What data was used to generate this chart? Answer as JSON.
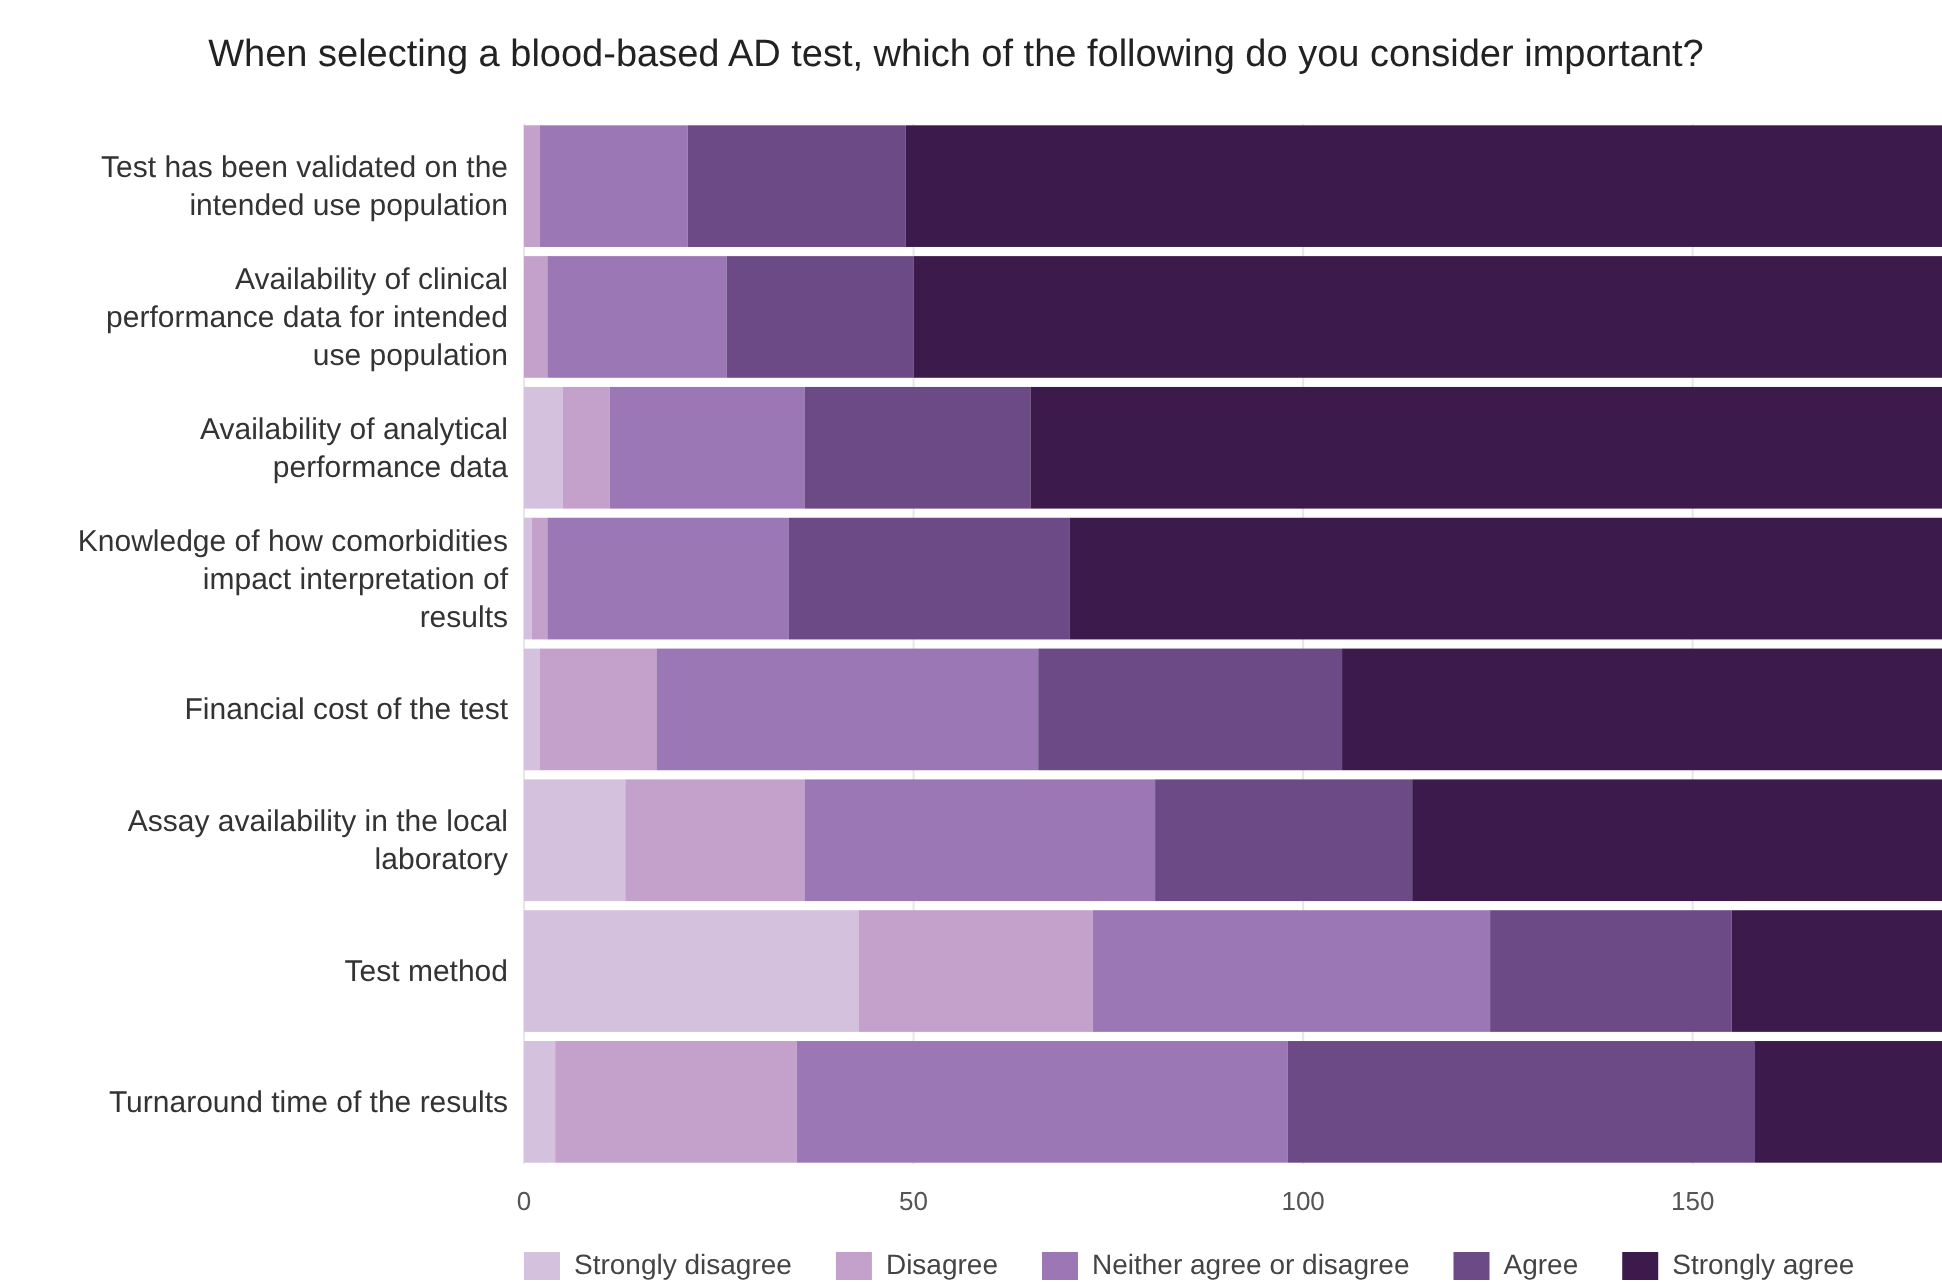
{
  "chart_data": {
    "type": "bar",
    "orientation": "horizontal",
    "stacked": true,
    "title": "When selecting a blood-based AD test, which of the following do you consider important?",
    "categories": [
      "Test has been validated on the intended use population",
      "Availability of clinical performance data for intended use population",
      "Availability of analytical performance data",
      "Knowledge of how comorbidities impact interpretation of results",
      "Financial cost of the test",
      "Assay availability in the local laboratory",
      "Test method",
      "Turnaround time of the results"
    ],
    "series": [
      {
        "name": "Strongly disagree",
        "color": "#d4c1dd",
        "values": [
          0,
          0,
          5,
          1,
          2,
          13,
          43,
          4
        ]
      },
      {
        "name": "Disagree",
        "color": "#c4a1ca",
        "values": [
          2,
          3,
          6,
          2,
          15,
          23,
          30,
          31
        ]
      },
      {
        "name": "Neither agree or disagree",
        "color": "#9c77b5",
        "values": [
          19,
          23,
          25,
          31,
          49,
          45,
          51,
          63
        ]
      },
      {
        "name": "Agree",
        "color": "#6b4a86",
        "values": [
          28,
          24,
          29,
          36,
          39,
          33,
          31,
          60
        ]
      },
      {
        "name": "Strongly agree",
        "color": "#3d1a4c",
        "values": [
          133,
          132,
          117,
          112,
          77,
          68,
          27,
          24
        ]
      }
    ],
    "xlim": [
      0,
      182
    ],
    "xticks": [
      0,
      50,
      100,
      150
    ],
    "grid": "x",
    "legend": "bottom"
  }
}
